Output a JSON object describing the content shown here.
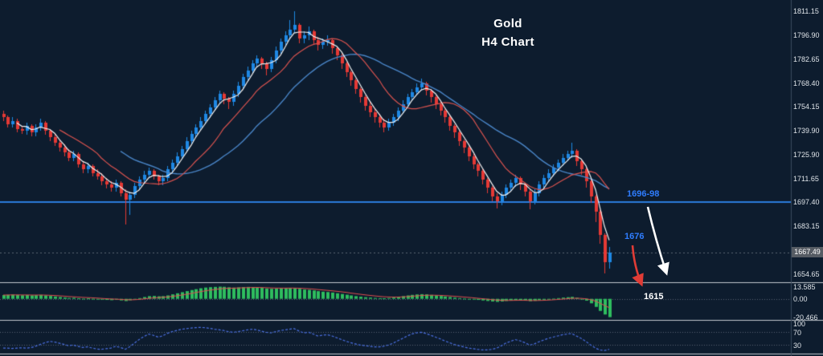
{
  "title": {
    "line1": "Gold",
    "line2": "H4 Chart"
  },
  "annotations": {
    "resistance_label": "1696-98",
    "breakdown_label": "1676",
    "target_label": "1615",
    "current_price": "1667.49"
  },
  "colors": {
    "background": "#0d1c2e",
    "candle_up": "#1e88e5",
    "candle_down": "#e53935",
    "ma_fast": "#f2f2f2",
    "ma_mid": "#d9534f",
    "ma_slow": "#4a86c8",
    "support_line": "#2b7cdc",
    "histogram": "#2ebd5e",
    "signal_line": "#e05050",
    "oscillator": "#4b6fe0",
    "white_arrow": "#ffffff",
    "red_arrow": "#e03c36"
  },
  "axis": {
    "price_labels": [
      "1811.15",
      "1796.90",
      "1782.65",
      "1768.40",
      "1754.15",
      "1739.90",
      "1725.90",
      "1711.65",
      "1697.40",
      "1683.15",
      "1654.65"
    ],
    "macd_labels": [
      {
        "text": "13.585",
        "value": 13.585
      },
      {
        "text": "0.00",
        "value": 0
      },
      {
        "text": "-20.466",
        "value": -20.466
      }
    ],
    "osc_labels": [
      {
        "text": "100",
        "value": 100
      },
      {
        "text": "70",
        "value": 70
      },
      {
        "text": "30",
        "value": 30
      }
    ]
  },
  "chart_data": {
    "type": "candlestick",
    "title": "Gold H4 Chart",
    "instrument": "Gold",
    "timeframe": "H4",
    "price_axis_range": [
      1648,
      1815
    ],
    "horizontal_line": {
      "price": 1697.4,
      "label": "1696-98"
    },
    "last_price": 1667.49,
    "annotation_levels": {
      "resistance_zone": "1696-98",
      "breakdown": 1676,
      "target": 1615
    },
    "moving_averages": [
      {
        "period": 4,
        "color": "#f2f2f2"
      },
      {
        "period": 13,
        "color": "#d9534f"
      },
      {
        "period": 26,
        "color": "#4a86c8"
      }
    ],
    "candles": [
      [
        1750,
        1752,
        1746,
        1748
      ],
      [
        1748,
        1749,
        1742,
        1744
      ],
      [
        1744,
        1748,
        1742,
        1746
      ],
      [
        1746,
        1747,
        1739,
        1741
      ],
      [
        1741,
        1743,
        1738,
        1740
      ],
      [
        1740,
        1745,
        1738,
        1743
      ],
      [
        1743,
        1744,
        1737,
        1739
      ],
      [
        1739,
        1744,
        1737,
        1742
      ],
      [
        1742,
        1747,
        1740,
        1745
      ],
      [
        1745,
        1746,
        1738,
        1740
      ],
      [
        1740,
        1741,
        1734,
        1736
      ],
      [
        1736,
        1738,
        1731,
        1733
      ],
      [
        1733,
        1735,
        1728,
        1730
      ],
      [
        1730,
        1732,
        1725,
        1727
      ],
      [
        1727,
        1729,
        1722,
        1724
      ],
      [
        1724,
        1728,
        1722,
        1726
      ],
      [
        1726,
        1727,
        1718,
        1720
      ],
      [
        1720,
        1722,
        1715,
        1717
      ],
      [
        1717,
        1721,
        1715,
        1719
      ],
      [
        1719,
        1720,
        1713,
        1715
      ],
      [
        1715,
        1717,
        1711,
        1713
      ],
      [
        1713,
        1715,
        1708,
        1710
      ],
      [
        1710,
        1712,
        1706,
        1708
      ],
      [
        1708,
        1710,
        1704,
        1706
      ],
      [
        1706,
        1711,
        1704,
        1709
      ],
      [
        1709,
        1710,
        1701,
        1703
      ],
      [
        1703,
        1705,
        1684,
        1699
      ],
      [
        1699,
        1704,
        1690,
        1702
      ],
      [
        1702,
        1709,
        1700,
        1707
      ],
      [
        1707,
        1713,
        1705,
        1711
      ],
      [
        1711,
        1716,
        1709,
        1714
      ],
      [
        1714,
        1718,
        1712,
        1716
      ],
      [
        1716,
        1717,
        1711,
        1713
      ],
      [
        1713,
        1714,
        1708,
        1710
      ],
      [
        1710,
        1714,
        1708,
        1712
      ],
      [
        1712,
        1719,
        1710,
        1717
      ],
      [
        1717,
        1723,
        1715,
        1721
      ],
      [
        1721,
        1727,
        1719,
        1725
      ],
      [
        1725,
        1731,
        1723,
        1729
      ],
      [
        1729,
        1736,
        1727,
        1734
      ],
      [
        1734,
        1740,
        1732,
        1738
      ],
      [
        1738,
        1744,
        1736,
        1742
      ],
      [
        1742,
        1748,
        1740,
        1746
      ],
      [
        1746,
        1752,
        1744,
        1750
      ],
      [
        1750,
        1756,
        1748,
        1754
      ],
      [
        1754,
        1760,
        1752,
        1758
      ],
      [
        1758,
        1764,
        1756,
        1762
      ],
      [
        1762,
        1763,
        1756,
        1759
      ],
      [
        1759,
        1760,
        1753,
        1757
      ],
      [
        1757,
        1764,
        1755,
        1762
      ],
      [
        1762,
        1769,
        1760,
        1767
      ],
      [
        1767,
        1774,
        1765,
        1772
      ],
      [
        1772,
        1778,
        1770,
        1776
      ],
      [
        1776,
        1782,
        1774,
        1780
      ],
      [
        1780,
        1785,
        1778,
        1783
      ],
      [
        1783,
        1784,
        1777,
        1780
      ],
      [
        1780,
        1781,
        1773,
        1777
      ],
      [
        1777,
        1784,
        1775,
        1782
      ],
      [
        1782,
        1790,
        1780,
        1788
      ],
      [
        1788,
        1795,
        1786,
        1793
      ],
      [
        1793,
        1799,
        1791,
        1797
      ],
      [
        1797,
        1806,
        1795,
        1800
      ],
      [
        1800,
        1811,
        1798,
        1803
      ],
      [
        1803,
        1804,
        1792,
        1795
      ],
      [
        1795,
        1799,
        1792,
        1797
      ],
      [
        1797,
        1802,
        1794,
        1799
      ],
      [
        1799,
        1800,
        1791,
        1794
      ],
      [
        1794,
        1796,
        1788,
        1791
      ],
      [
        1791,
        1795,
        1789,
        1793
      ],
      [
        1793,
        1797,
        1791,
        1794
      ],
      [
        1794,
        1795,
        1786,
        1789
      ],
      [
        1789,
        1790,
        1782,
        1785
      ],
      [
        1785,
        1786,
        1777,
        1780
      ],
      [
        1780,
        1781,
        1772,
        1775
      ],
      [
        1775,
        1776,
        1767,
        1770
      ],
      [
        1770,
        1771,
        1762,
        1765
      ],
      [
        1765,
        1766,
        1757,
        1760
      ],
      [
        1760,
        1761,
        1752,
        1755
      ],
      [
        1755,
        1757,
        1748,
        1751
      ],
      [
        1751,
        1753,
        1745,
        1748
      ],
      [
        1748,
        1750,
        1742,
        1745
      ],
      [
        1745,
        1747,
        1739,
        1742
      ],
      [
        1742,
        1747,
        1740,
        1745
      ],
      [
        1745,
        1750,
        1743,
        1748
      ],
      [
        1748,
        1754,
        1746,
        1752
      ],
      [
        1752,
        1758,
        1750,
        1756
      ],
      [
        1756,
        1762,
        1754,
        1760
      ],
      [
        1760,
        1765,
        1758,
        1763
      ],
      [
        1763,
        1768,
        1761,
        1766
      ],
      [
        1766,
        1771,
        1764,
        1768
      ],
      [
        1768,
        1769,
        1761,
        1764
      ],
      [
        1764,
        1765,
        1757,
        1760
      ],
      [
        1760,
        1761,
        1753,
        1756
      ],
      [
        1756,
        1757,
        1749,
        1752
      ],
      [
        1752,
        1753,
        1745,
        1748
      ],
      [
        1748,
        1749,
        1740,
        1743
      ],
      [
        1743,
        1744,
        1736,
        1739
      ],
      [
        1739,
        1740,
        1731,
        1734
      ],
      [
        1734,
        1735,
        1727,
        1730
      ],
      [
        1730,
        1731,
        1722,
        1725
      ],
      [
        1725,
        1726,
        1717,
        1720
      ],
      [
        1720,
        1721,
        1713,
        1716
      ],
      [
        1716,
        1717,
        1708,
        1711
      ],
      [
        1711,
        1712,
        1703,
        1706
      ],
      [
        1706,
        1707,
        1698,
        1701
      ],
      [
        1701,
        1703,
        1694,
        1698
      ],
      [
        1698,
        1704,
        1696,
        1702
      ],
      [
        1702,
        1708,
        1700,
        1706
      ],
      [
        1706,
        1711,
        1704,
        1709
      ],
      [
        1709,
        1714,
        1707,
        1712
      ],
      [
        1712,
        1713,
        1705,
        1708
      ],
      [
        1708,
        1709,
        1701,
        1704
      ],
      [
        1704,
        1705,
        1693,
        1698
      ],
      [
        1698,
        1705,
        1696,
        1703
      ],
      [
        1703,
        1710,
        1701,
        1708
      ],
      [
        1708,
        1714,
        1706,
        1712
      ],
      [
        1712,
        1717,
        1710,
        1715
      ],
      [
        1715,
        1720,
        1713,
        1718
      ],
      [
        1718,
        1723,
        1716,
        1721
      ],
      [
        1721,
        1726,
        1719,
        1724
      ],
      [
        1724,
        1728,
        1722,
        1726
      ],
      [
        1726,
        1733,
        1724,
        1728
      ],
      [
        1728,
        1729,
        1719,
        1722
      ],
      [
        1722,
        1723,
        1714,
        1717
      ],
      [
        1717,
        1718,
        1706,
        1710
      ],
      [
        1710,
        1711,
        1697,
        1701
      ],
      [
        1701,
        1702,
        1686,
        1692
      ],
      [
        1692,
        1693,
        1673,
        1678
      ],
      [
        1678,
        1679,
        1655,
        1662
      ],
      [
        1662,
        1671,
        1658,
        1667.49
      ]
    ],
    "indicators": {
      "macd_histogram": {
        "max": 13.585,
        "min": -20.466,
        "values": [
          4.2,
          4.5,
          4.8,
          4.4,
          4.0,
          4.3,
          3.9,
          4.1,
          4.4,
          3.8,
          3.2,
          2.6,
          2.0,
          1.5,
          1.0,
          1.2,
          0.6,
          0.2,
          0.5,
          0.1,
          -0.3,
          -0.8,
          -1.2,
          -1.5,
          -1.0,
          -1.8,
          -2.5,
          -1.6,
          -0.5,
          0.8,
          2.0,
          3.0,
          3.2,
          2.8,
          3.0,
          3.8,
          5.0,
          6.2,
          7.4,
          8.6,
          9.8,
          10.8,
          11.8,
          12.6,
          13.0,
          13.3,
          13.585,
          13.4,
          12.9,
          12.5,
          12.8,
          13.1,
          13.3,
          13.2,
          12.9,
          12.3,
          11.6,
          11.2,
          11.4,
          11.8,
          12.0,
          12.2,
          12.0,
          11.2,
          10.4,
          10.0,
          9.4,
          8.6,
          8.0,
          7.6,
          7.0,
          6.2,
          5.4,
          4.6,
          3.8,
          3.0,
          2.4,
          1.8,
          1.4,
          1.0,
          0.8,
          0.6,
          0.9,
          1.4,
          2.2,
          3.0,
          3.8,
          4.4,
          4.9,
          5.2,
          5.0,
          4.4,
          3.8,
          3.2,
          2.6,
          2.0,
          1.4,
          0.8,
          0.3,
          -0.2,
          -0.7,
          -1.2,
          -1.8,
          -2.4,
          -3.0,
          -3.4,
          -3.0,
          -2.4,
          -1.8,
          -1.2,
          -1.4,
          -1.8,
          -2.6,
          -2.2,
          -1.6,
          -1.0,
          -0.4,
          0.2,
          0.8,
          1.4,
          1.8,
          2.2,
          1.2,
          0.0,
          -2.0,
          -5.0,
          -9.0,
          -13.5,
          -17.5,
          -20.466
        ]
      },
      "oscillator": {
        "levels": [
          100,
          70,
          30
        ],
        "values": [
          18,
          18,
          17,
          18,
          19,
          18,
          20,
          24,
          30,
          36,
          40,
          38,
          34,
          30,
          26,
          28,
          24,
          20,
          22,
          18,
          15,
          14,
          16,
          18,
          24,
          20,
          14,
          22,
          34,
          46,
          56,
          64,
          60,
          54,
          58,
          66,
          72,
          76,
          80,
          82,
          84,
          85,
          86,
          85,
          83,
          80,
          78,
          76,
          72,
          70,
          72,
          75,
          78,
          80,
          78,
          74,
          70,
          68,
          72,
          76,
          78,
          80,
          82,
          74,
          68,
          70,
          64,
          58,
          60,
          62,
          58,
          52,
          46,
          40,
          36,
          32,
          28,
          26,
          24,
          22,
          22,
          24,
          28,
          34,
          42,
          50,
          58,
          64,
          68,
          70,
          66,
          60,
          54,
          48,
          42,
          36,
          30,
          26,
          22,
          18,
          16,
          14,
          12,
          12,
          14,
          18,
          26,
          34,
          40,
          46,
          42,
          36,
          28,
          32,
          38,
          44,
          50,
          54,
          58,
          62,
          64,
          66,
          58,
          50,
          40,
          28,
          18,
          12,
          10,
          14
        ]
      }
    }
  }
}
